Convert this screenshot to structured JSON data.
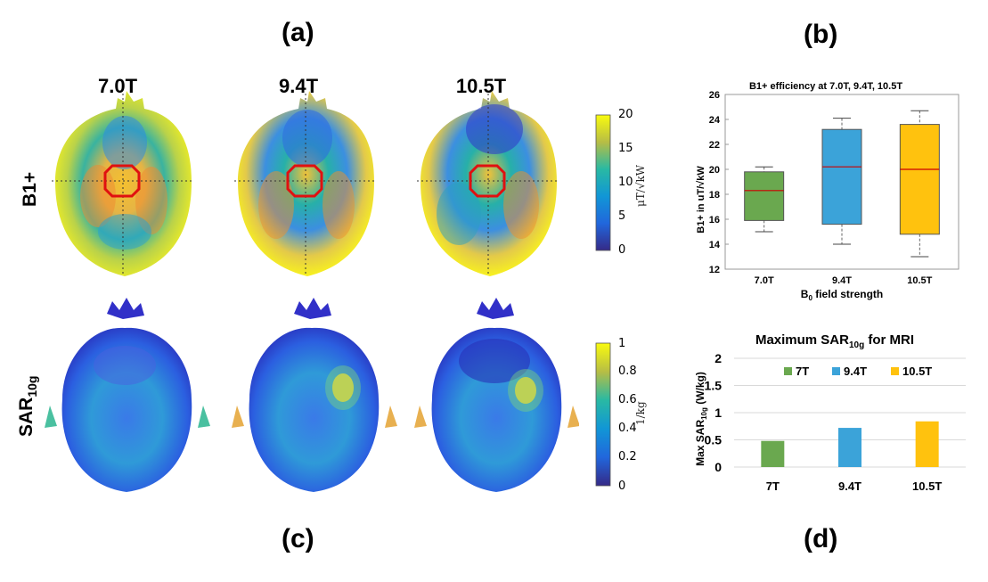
{
  "panel_labels": {
    "a": "(a)",
    "b": "(b)",
    "c": "(c)",
    "d": "(d)"
  },
  "fields": [
    "7.0T",
    "9.4T",
    "10.5T"
  ],
  "row_labels": {
    "b1": "B1+",
    "sar_main": "SAR",
    "sar_sub": "10g"
  },
  "colorbar_b1": {
    "ticks": [
      "20",
      "15",
      "10",
      "5",
      "0"
    ],
    "unit": "μT/√kW"
  },
  "colorbar_sar": {
    "ticks": [
      "1",
      "0.8",
      "0.6",
      "0.4",
      "0.2",
      "0"
    ],
    "unit": "1/kg"
  },
  "colors": {
    "green": "#6aa84f",
    "blue": "#3ba3d9",
    "yellow": "#ffc20e",
    "median": "#cc0000"
  },
  "chart_data": [
    {
      "type": "box",
      "title": "B1+ efficiency at 7.0T, 9.4T, 10.5T",
      "xlabel_main": "B",
      "xlabel_sub": "0",
      "xlabel_rest": " field strength",
      "ylabel": "B1+ in  uT/√kW",
      "ylim": [
        12,
        26
      ],
      "yticks": [
        "26",
        "24",
        "22",
        "20",
        "18",
        "16",
        "14",
        "12"
      ],
      "categories": [
        "7.0T",
        "9.4T",
        "10.5T"
      ],
      "boxes": [
        {
          "min": 15.0,
          "q1": 15.9,
          "median": 18.3,
          "q3": 19.8,
          "max": 20.2
        },
        {
          "min": 14.0,
          "q1": 15.6,
          "median": 20.2,
          "q3": 23.2,
          "max": 24.1
        },
        {
          "min": 13.0,
          "q1": 14.8,
          "median": 20.0,
          "q3": 23.6,
          "max": 24.7
        }
      ]
    },
    {
      "type": "bar",
      "title_main": "Maximum SAR",
      "title_sub": "10g",
      "title_rest": " for MRI",
      "ylabel_main": "Max  SAR",
      "ylabel_sub": "10g",
      "ylabel_rest": " (W/kg)",
      "ylim": [
        0,
        2
      ],
      "yticks": [
        "2",
        "1.5",
        "1",
        "0.5",
        "0"
      ],
      "categories": [
        "7T",
        "9.4T",
        "10.5T"
      ],
      "values": [
        0.48,
        0.72,
        0.84
      ],
      "legend": [
        "7T",
        "9.4T",
        "10.5T"
      ]
    }
  ]
}
